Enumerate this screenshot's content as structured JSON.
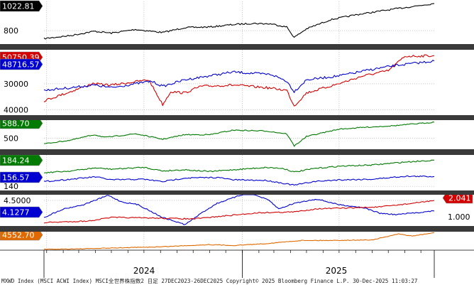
{
  "chart_data": [
    {
      "type": "line",
      "ylim": [
        690,
        1040
      ],
      "yticks": [
        800
      ],
      "series": [
        {
          "color": "#000000",
          "last_tag": "1022.81",
          "values": [
            {
              "x": "2023-12-27",
              "y": 735
            },
            {
              "x": "2024-02-15",
              "y": 760
            },
            {
              "x": "2024-03-30",
              "y": 795
            },
            {
              "x": "2024-05-01",
              "y": 780
            },
            {
              "x": "2024-06-15",
              "y": 810
            },
            {
              "x": "2024-08-05",
              "y": 785
            },
            {
              "x": "2024-09-15",
              "y": 825
            },
            {
              "x": "2024-11-01",
              "y": 830
            },
            {
              "x": "2024-12-15",
              "y": 850
            },
            {
              "x": "2025-01-20",
              "y": 860
            },
            {
              "x": "2025-02-25",
              "y": 855
            },
            {
              "x": "2025-03-25",
              "y": 830
            },
            {
              "x": "2025-04-08",
              "y": 745
            },
            {
              "x": "2025-05-01",
              "y": 815
            },
            {
              "x": "2025-06-15",
              "y": 890
            },
            {
              "x": "2025-08-01",
              "y": 930
            },
            {
              "x": "2025-09-15",
              "y": 960
            },
            {
              "x": "2025-11-01",
              "y": 990
            },
            {
              "x": "2025-12-26",
              "y": 1022.81
            }
          ]
        }
      ]
    },
    {
      "type": "line",
      "ylim": [
        28000,
        53000
      ],
      "yticks": [
        30000,
        40000
      ],
      "series": [
        {
          "color": "#d40000",
          "last_tag": "50750.39",
          "values": [
            {
              "x": "2023-12-27",
              "y": 33500
            },
            {
              "x": "2024-02-15",
              "y": 37000
            },
            {
              "x": "2024-03-25",
              "y": 40000
            },
            {
              "x": "2024-05-01",
              "y": 39500
            },
            {
              "x": "2024-07-10",
              "y": 41500
            },
            {
              "x": "2024-08-05",
              "y": 32000
            },
            {
              "x": "2024-08-20",
              "y": 37000
            },
            {
              "x": "2024-09-15",
              "y": 36500
            },
            {
              "x": "2024-10-15",
              "y": 39000
            },
            {
              "x": "2024-12-15",
              "y": 39500
            },
            {
              "x": "2025-02-15",
              "y": 38500
            },
            {
              "x": "2025-03-25",
              "y": 37500
            },
            {
              "x": "2025-04-08",
              "y": 31500
            },
            {
              "x": "2025-05-01",
              "y": 36500
            },
            {
              "x": "2025-06-30",
              "y": 40000
            },
            {
              "x": "2025-08-15",
              "y": 43000
            },
            {
              "x": "2025-10-01",
              "y": 45000
            },
            {
              "x": "2025-11-01",
              "y": 50500
            },
            {
              "x": "2025-12-26",
              "y": 50750.39
            }
          ]
        },
        {
          "color": "#0000d0",
          "last_tag": "48716.57",
          "values": [
            {
              "x": "2023-12-27",
              "y": 37500
            },
            {
              "x": "2024-02-15",
              "y": 38500
            },
            {
              "x": "2024-03-30",
              "y": 39500
            },
            {
              "x": "2024-05-01",
              "y": 38500
            },
            {
              "x": "2024-07-15",
              "y": 41000
            },
            {
              "x": "2024-08-05",
              "y": 39000
            },
            {
              "x": "2024-09-15",
              "y": 41500
            },
            {
              "x": "2024-11-15",
              "y": 43500
            },
            {
              "x": "2024-12-15",
              "y": 44500
            },
            {
              "x": "2025-01-20",
              "y": 44000
            },
            {
              "x": "2025-02-25",
              "y": 43500
            },
            {
              "x": "2025-03-25",
              "y": 41000
            },
            {
              "x": "2025-04-08",
              "y": 37000
            },
            {
              "x": "2025-05-01",
              "y": 41500
            },
            {
              "x": "2025-06-30",
              "y": 43000
            },
            {
              "x": "2025-09-01",
              "y": 45500
            },
            {
              "x": "2025-10-15",
              "y": 47000
            },
            {
              "x": "2025-12-26",
              "y": 48716.57
            }
          ]
        }
      ]
    },
    {
      "type": "line",
      "ylim": [
        440,
        600
      ],
      "yticks": [
        500
      ],
      "series": [
        {
          "color": "#007a00",
          "last_tag": "588.70",
          "values": [
            {
              "x": "2023-12-27",
              "y": 470
            },
            {
              "x": "2024-02-15",
              "y": 490
            },
            {
              "x": "2024-03-30",
              "y": 520
            },
            {
              "x": "2024-04-20",
              "y": 505
            },
            {
              "x": "2024-06-15",
              "y": 525
            },
            {
              "x": "2024-08-05",
              "y": 495
            },
            {
              "x": "2024-09-15",
              "y": 520
            },
            {
              "x": "2024-11-01",
              "y": 520
            },
            {
              "x": "2024-12-15",
              "y": 545
            },
            {
              "x": "2025-02-15",
              "y": 540
            },
            {
              "x": "2025-03-25",
              "y": 525
            },
            {
              "x": "2025-04-08",
              "y": 458
            },
            {
              "x": "2025-05-01",
              "y": 510
            },
            {
              "x": "2025-06-30",
              "y": 550
            },
            {
              "x": "2025-08-15",
              "y": 560
            },
            {
              "x": "2025-10-15",
              "y": 570
            },
            {
              "x": "2025-12-26",
              "y": 588.7
            }
          ]
        }
      ]
    },
    {
      "type": "line",
      "ylim": [
        133,
        193
      ],
      "yticks": [
        140
      ],
      "series": [
        {
          "color": "#007a00",
          "last_tag": "184.24",
          "values": [
            {
              "x": "2023-12-27",
              "y": 163
            },
            {
              "x": "2024-02-15",
              "y": 166
            },
            {
              "x": "2024-04-01",
              "y": 171
            },
            {
              "x": "2024-05-01",
              "y": 169
            },
            {
              "x": "2024-07-01",
              "y": 172
            },
            {
              "x": "2024-08-05",
              "y": 166
            },
            {
              "x": "2024-09-15",
              "y": 168
            },
            {
              "x": "2024-11-01",
              "y": 165
            },
            {
              "x": "2024-12-15",
              "y": 168
            },
            {
              "x": "2025-02-15",
              "y": 172
            },
            {
              "x": "2025-03-20",
              "y": 170
            },
            {
              "x": "2025-04-08",
              "y": 164
            },
            {
              "x": "2025-05-15",
              "y": 170
            },
            {
              "x": "2025-07-01",
              "y": 174
            },
            {
              "x": "2025-09-01",
              "y": 176
            },
            {
              "x": "2025-11-01",
              "y": 181
            },
            {
              "x": "2025-12-26",
              "y": 184.24
            }
          ]
        },
        {
          "color": "#0000d0",
          "last_tag": "156.57",
          "values": [
            {
              "x": "2023-12-27",
              "y": 148
            },
            {
              "x": "2024-02-15",
              "y": 152
            },
            {
              "x": "2024-04-01",
              "y": 156
            },
            {
              "x": "2024-05-01",
              "y": 151
            },
            {
              "x": "2024-07-01",
              "y": 152
            },
            {
              "x": "2024-08-05",
              "y": 148
            },
            {
              "x": "2024-09-15",
              "y": 154
            },
            {
              "x": "2024-11-15",
              "y": 155
            },
            {
              "x": "2024-12-15",
              "y": 151
            },
            {
              "x": "2025-02-15",
              "y": 150
            },
            {
              "x": "2025-04-08",
              "y": 142
            },
            {
              "x": "2025-05-15",
              "y": 148
            },
            {
              "x": "2025-07-01",
              "y": 151
            },
            {
              "x": "2025-09-01",
              "y": 152
            },
            {
              "x": "2025-11-01",
              "y": 157
            },
            {
              "x": "2025-12-26",
              "y": 156.57
            }
          ]
        }
      ]
    },
    {
      "type": "line",
      "ylim": [
        3.6,
        4.7
      ],
      "yticks": [
        4.5
      ],
      "right_ylim": [
        0.4,
        2.4
      ],
      "right_yticks": [
        1.0
      ],
      "series": [
        {
          "color": "#0000d0",
          "last_tag": "4.1277",
          "axis": "left",
          "values": [
            {
              "x": "2023-12-27",
              "y": 3.9
            },
            {
              "x": "2024-02-01",
              "y": 4.2
            },
            {
              "x": "2024-03-10",
              "y": 4.35
            },
            {
              "x": "2024-04-25",
              "y": 4.68
            },
            {
              "x": "2024-05-20",
              "y": 4.45
            },
            {
              "x": "2024-06-20",
              "y": 4.35
            },
            {
              "x": "2024-08-05",
              "y": 3.9
            },
            {
              "x": "2024-09-16",
              "y": 3.65
            },
            {
              "x": "2024-10-20",
              "y": 4.1
            },
            {
              "x": "2024-11-15",
              "y": 4.4
            },
            {
              "x": "2025-01-13",
              "y": 4.78
            },
            {
              "x": "2025-02-20",
              "y": 4.5
            },
            {
              "x": "2025-03-10",
              "y": 4.2
            },
            {
              "x": "2025-04-08",
              "y": 4.4
            },
            {
              "x": "2025-05-20",
              "y": 4.55
            },
            {
              "x": "2025-07-01",
              "y": 4.35
            },
            {
              "x": "2025-08-15",
              "y": 4.25
            },
            {
              "x": "2025-09-15",
              "y": 4.05
            },
            {
              "x": "2025-10-15",
              "y": 4.0
            },
            {
              "x": "2025-12-26",
              "y": 4.1277
            }
          ]
        },
        {
          "color": "#d40000",
          "last_tag": "2.041",
          "axis": "right",
          "values": [
            {
              "x": "2023-12-27",
              "y": 0.62
            },
            {
              "x": "2024-03-19",
              "y": 0.72
            },
            {
              "x": "2024-05-01",
              "y": 0.95
            },
            {
              "x": "2024-08-05",
              "y": 0.9
            },
            {
              "x": "2024-10-01",
              "y": 0.85
            },
            {
              "x": "2024-12-01",
              "y": 1.05
            },
            {
              "x": "2025-02-01",
              "y": 1.25
            },
            {
              "x": "2025-04-08",
              "y": 1.3
            },
            {
              "x": "2025-05-20",
              "y": 1.5
            },
            {
              "x": "2025-07-15",
              "y": 1.55
            },
            {
              "x": "2025-09-15",
              "y": 1.62
            },
            {
              "x": "2025-11-15",
              "y": 1.85
            },
            {
              "x": "2025-12-26",
              "y": 2.041
            }
          ]
        }
      ]
    },
    {
      "type": "line",
      "ylim": [
        1950,
        4700
      ],
      "yticks": [],
      "series": [
        {
          "color": "#e06a00",
          "last_tag": "4552.70",
          "values": [
            {
              "x": "2023-12-27",
              "y": 2065
            },
            {
              "x": "2024-03-15",
              "y": 2170
            },
            {
              "x": "2024-06-01",
              "y": 2330
            },
            {
              "x": "2024-08-01",
              "y": 2450
            },
            {
              "x": "2024-10-30",
              "y": 2780
            },
            {
              "x": "2024-12-15",
              "y": 2650
            },
            {
              "x": "2025-02-15",
              "y": 2930
            },
            {
              "x": "2025-04-22",
              "y": 3400
            },
            {
              "x": "2025-06-15",
              "y": 3400
            },
            {
              "x": "2025-09-01",
              "y": 3480
            },
            {
              "x": "2025-10-20",
              "y": 4350
            },
            {
              "x": "2025-11-15",
              "y": 4050
            },
            {
              "x": "2025-12-26",
              "y": 4552.7
            }
          ]
        }
      ]
    }
  ],
  "panel_tick_labels": [
    {
      "left": [
        "800"
      ]
    },
    {
      "left": [
        "40000",
        "30000"
      ]
    },
    {
      "left": [
        "500"
      ]
    },
    {
      "left": [
        "140"
      ]
    },
    {
      "left": [
        "4.5000"
      ],
      "right": [
        "1.000"
      ]
    },
    {
      "left": []
    }
  ],
  "x_axis": {
    "labels": [
      "2024",
      "2025"
    ],
    "range": [
      "2023-12-27",
      "2025-12-26"
    ]
  },
  "footer": {
    "text": "MXWD Index (MSCI ACWI Index) MSCI全世界株指数2 日足 27DEC2023-26DEC2025  Copyright© 2025 Bloomberg Finance L.P.  30-Dec-2025 11:03:27"
  }
}
